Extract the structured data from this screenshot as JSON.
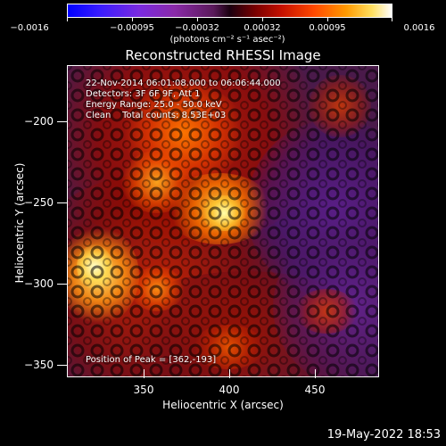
{
  "colorbar": {
    "ticks": [
      "−0.0016",
      "−0.00095",
      "−0.00032",
      "0.00032",
      "0.00095",
      "0.0016"
    ],
    "units": "(photons cm⁻² s⁻¹ asec⁻²)"
  },
  "title": "Reconstructed RHESSI Image",
  "annotation": {
    "line1": "22-Nov-2014 06:01:08.000 to 06:06:44.000",
    "line2": "Detectors: 3F 6F 9F, Att 1",
    "line3": "Energy Range: 25.0 - 50.0 keV",
    "line4": "Clean    Total counts: 8.53E+03",
    "peak": "Position of Peak = [362,-193]"
  },
  "axes": {
    "xlabel": "Heliocentric X (arcsec)",
    "ylabel": "Heliocentric Y (arcsec)",
    "xticks": [
      "350",
      "400",
      "450"
    ],
    "yticks": [
      "−200",
      "−250",
      "−300",
      "−350"
    ]
  },
  "timestamp": "19-May-2022 18:53",
  "colors": {
    "low": "#0000ff",
    "mid": "#000000",
    "high": "#ffffff",
    "accent": "#ff4800"
  }
}
